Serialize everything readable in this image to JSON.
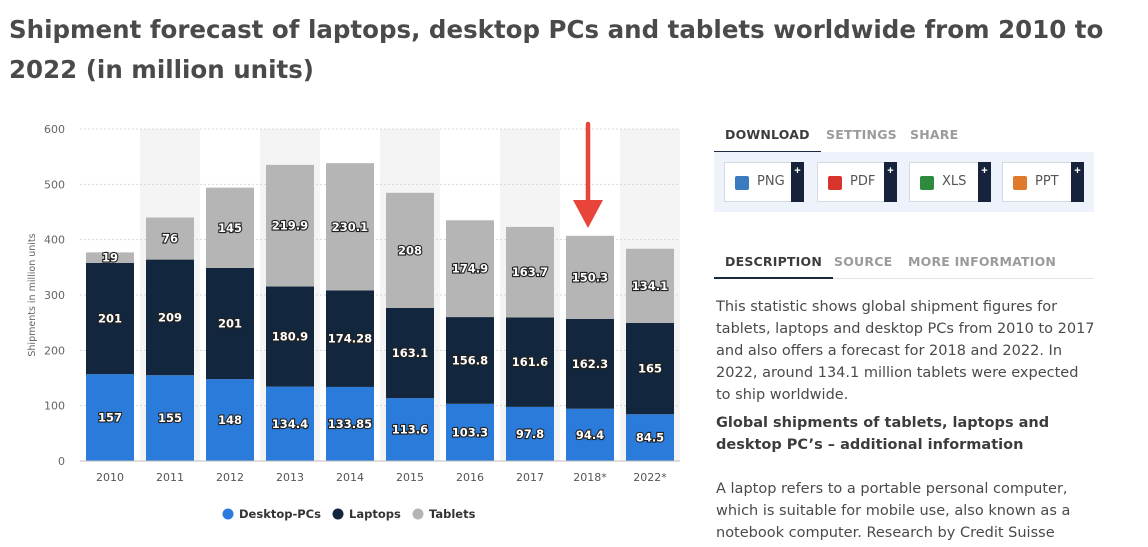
{
  "title": "Shipment forecast of laptops, desktop PCs and tablets worldwide from 2010 to 2022 (in million units)",
  "chart_data": {
    "type": "bar",
    "stacked": true,
    "categories": [
      "2010",
      "2011",
      "2012",
      "2013",
      "2014",
      "2015",
      "2016",
      "2017",
      "2018*",
      "2022*"
    ],
    "series": [
      {
        "name": "Desktop-PCs",
        "values": [
          157,
          155,
          148,
          134.4,
          133.85,
          113.6,
          103.3,
          97.8,
          94.4,
          84.5
        ],
        "color": "#2b7bdb"
      },
      {
        "name": "Laptops",
        "values": [
          201,
          209,
          201,
          180.9,
          174.28,
          163.1,
          156.8,
          161.6,
          162.3,
          165
        ],
        "color": "#12263d"
      },
      {
        "name": "Tablets",
        "values": [
          19,
          76,
          145,
          219.9,
          230.1,
          208,
          174.9,
          163.7,
          150.3,
          134.1
        ],
        "color": "#b5b5b5"
      }
    ],
    "ylabel": "Shipments in million units",
    "xlabel": "",
    "ylim": [
      0,
      600
    ],
    "yticks": [
      "0",
      "100",
      "200",
      "300",
      "400",
      "500",
      "600"
    ],
    "grid": true,
    "legend": "bottom-center",
    "annotation": {
      "type": "arrow",
      "target_category": "2018*",
      "color": "#e8443a"
    }
  },
  "panel": {
    "tabs": [
      "DOWNLOAD",
      "SETTINGS",
      "SHARE"
    ],
    "downloads": [
      {
        "label": "PNG",
        "icon": "png-file-icon",
        "color": "#3a7bbf"
      },
      {
        "label": "PDF",
        "icon": "pdf-file-icon",
        "color": "#d9342b"
      },
      {
        "label": "XLS",
        "icon": "xls-file-icon",
        "color": "#2e8b3e"
      },
      {
        "label": "PPT",
        "icon": "ppt-file-icon",
        "color": "#e07a2a"
      }
    ],
    "plus": "+",
    "info_tabs": [
      "DESCRIPTION",
      "SOURCE",
      "MORE INFORMATION"
    ],
    "description": "This statistic shows global shipment figures for tablets, laptops and desktop PCs from 2010 to 2017 and also offers a forecast for 2018 and 2022. In 2022, around 134.1 million tablets were expected to ship worldwide.",
    "subheading": "Global shipments of tablets, laptops and desktop PC’s – additional information",
    "description2": "A laptop refers to a portable personal computer, which is suitable for mobile use, also known as a notebook computer. Research by Credit Suisse"
  }
}
